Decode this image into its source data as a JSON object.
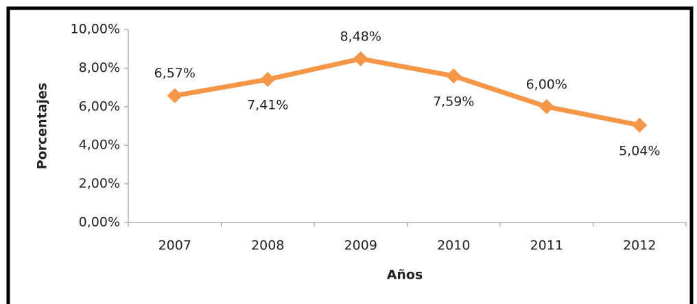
{
  "chart_data": {
    "type": "line",
    "categories": [
      "2007",
      "2008",
      "2009",
      "2010",
      "2011",
      "2012"
    ],
    "series": [
      {
        "name": "Porcentajes",
        "color": "#f79646",
        "values": [
          6.57,
          7.41,
          8.48,
          7.59,
          6.0,
          5.04
        ],
        "value_labels": [
          "6,57%",
          "7,41%",
          "8,48%",
          "7,59%",
          "6,00%",
          "5,04%"
        ]
      }
    ],
    "xlabel": "Años",
    "ylabel": "Porcentajes",
    "ylim": [
      0,
      10
    ],
    "yticks": [
      {
        "value": 0,
        "label": "0,00%"
      },
      {
        "value": 2,
        "label": "2,00%"
      },
      {
        "value": 4,
        "label": "4,00%"
      },
      {
        "value": 6,
        "label": "6,00%"
      },
      {
        "value": 8,
        "label": "8,00%"
      },
      {
        "value": 10,
        "label": "10,00%"
      }
    ],
    "grid": false,
    "legend": false
  }
}
